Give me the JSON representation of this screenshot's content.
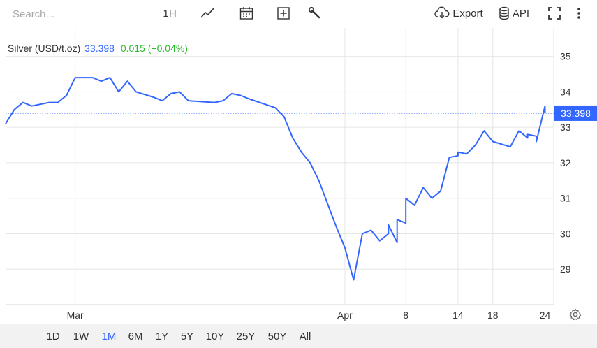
{
  "toolbar": {
    "search_placeholder": "Search...",
    "interval_label": "1H",
    "export_label": "Export",
    "api_label": "API",
    "icons": [
      "line-chart-icon",
      "calendar-icon",
      "plus-square-icon",
      "wrench-icon",
      "cloud-download-icon",
      "database-icon",
      "fullscreen-icon",
      "more-vertical-icon"
    ]
  },
  "legend": {
    "name": "Silver (USD/t.oz)",
    "price": "33.398",
    "change": "0.015 (+0.04%)"
  },
  "last_price_label": "33.398",
  "ranges": [
    "1D",
    "1W",
    "1M",
    "6M",
    "1Y",
    "5Y",
    "10Y",
    "25Y",
    "50Y",
    "All"
  ],
  "active_range": "1M",
  "colors": {
    "line": "#3366ff",
    "change_positive": "#2eb82e",
    "grid": "#e6e6e6",
    "price_tag_bg": "#3366ff"
  },
  "chart_data": {
    "type": "line",
    "title": "Silver (USD/t.oz)",
    "x_tick_labels": [
      "Mar",
      "Apr",
      "8",
      "14",
      "18",
      "24"
    ],
    "x_ticks": [
      "2025-03-01",
      "2025-04-01",
      "2025-04-08",
      "2025-04-14",
      "2025-04-18",
      "2025-04-24"
    ],
    "xlim": [
      "2025-02-21",
      "2025-04-25"
    ],
    "ylim": [
      28.0,
      35.8
    ],
    "y_ticks": [
      29,
      30,
      31,
      32,
      33,
      34,
      35
    ],
    "grid": true,
    "last_value": 33.398,
    "x": [
      "2025-02-21",
      "2025-02-22",
      "2025-02-23",
      "2025-02-24",
      "2025-02-25",
      "2025-02-26",
      "2025-02-27",
      "2025-02-28",
      "2025-03-01",
      "2025-03-03",
      "2025-03-04",
      "2025-03-05",
      "2025-03-06",
      "2025-03-07",
      "2025-03-08",
      "2025-03-10",
      "2025-03-11",
      "2025-03-12",
      "2025-03-13",
      "2025-03-14",
      "2025-03-17",
      "2025-03-18",
      "2025-03-19",
      "2025-03-20",
      "2025-03-21",
      "2025-03-24",
      "2025-03-25",
      "2025-03-26",
      "2025-03-27",
      "2025-03-28",
      "2025-03-29",
      "2025-03-31",
      "2025-04-01",
      "2025-04-02",
      "2025-04-03",
      "2025-04-04",
      "2025-04-05",
      "2025-04-06",
      "2025-04-06",
      "2025-04-07",
      "2025-04-07",
      "2025-04-08",
      "2025-04-08",
      "2025-04-09",
      "2025-04-10",
      "2025-04-11",
      "2025-04-12",
      "2025-04-13",
      "2025-04-14",
      "2025-04-14",
      "2025-04-15",
      "2025-04-16",
      "2025-04-17",
      "2025-04-18",
      "2025-04-20",
      "2025-04-21",
      "2025-04-22",
      "2025-04-22",
      "2025-04-23",
      "2025-04-23",
      "2025-04-24",
      "2025-04-24"
    ],
    "series": [
      {
        "values": [
          33.1,
          33.5,
          33.7,
          33.6,
          33.65,
          33.7,
          33.7,
          33.9,
          34.4,
          34.4,
          34.3,
          34.4,
          34.0,
          34.3,
          34.0,
          33.85,
          33.75,
          33.95,
          34.0,
          33.75,
          33.7,
          33.75,
          33.95,
          33.9,
          33.8,
          33.55,
          33.3,
          32.7,
          32.3,
          32.0,
          31.5,
          30.2,
          29.6,
          28.7,
          30.0,
          30.1,
          29.8,
          30.0,
          30.25,
          29.75,
          30.4,
          30.3,
          31.0,
          30.8,
          31.3,
          31.0,
          31.2,
          32.15,
          32.2,
          32.3,
          32.25,
          32.5,
          32.9,
          32.6,
          32.45,
          32.9,
          32.7,
          32.8,
          32.75,
          32.6,
          33.6,
          33.4
        ]
      }
    ]
  }
}
